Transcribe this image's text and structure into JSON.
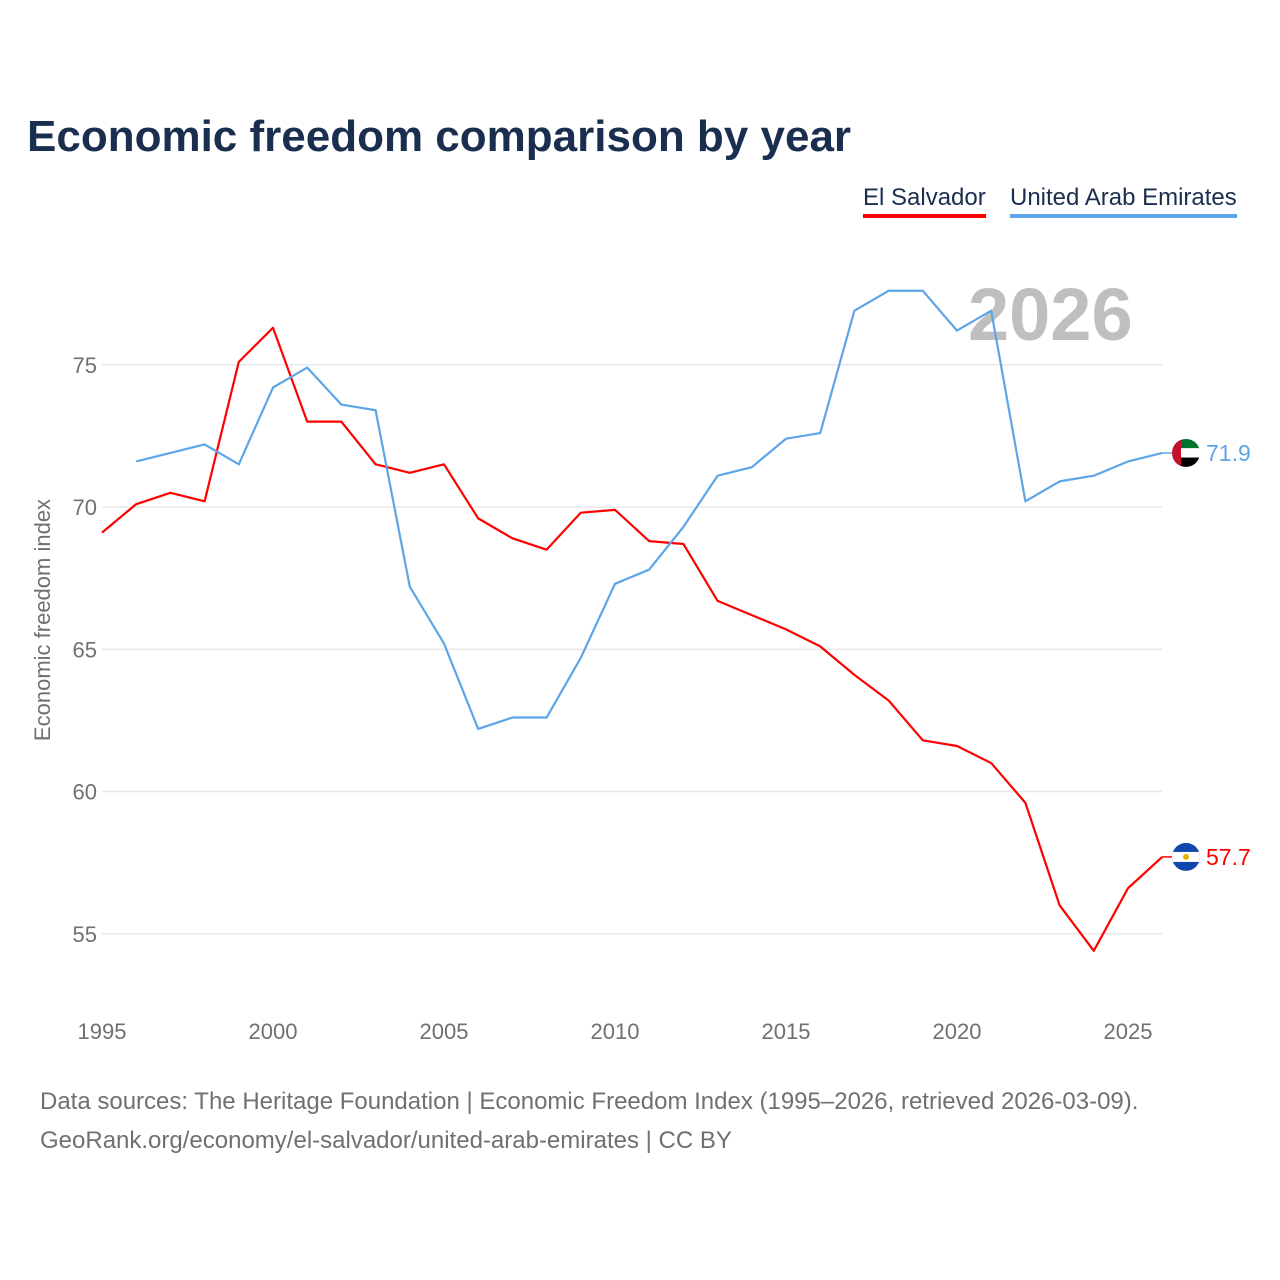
{
  "title": "Economic freedom comparison by year",
  "year_label": "2026",
  "source_line1": "Data sources: The Heritage Foundation | Economic Freedom Index (1995–2026, retrieved 2026-03-09).",
  "source_line2": "GeoRank.org/economy/el-salvador/united-arab-emirates | CC BY",
  "chart_data": {
    "type": "line",
    "title": "Economic freedom comparison by year",
    "xlabel": "",
    "ylabel": "Economic freedom index",
    "xlim": [
      1995,
      2026
    ],
    "ylim": [
      52.5,
      79
    ],
    "xticks": [
      1995,
      2000,
      2005,
      2010,
      2015,
      2020,
      2025
    ],
    "yticks": [
      55,
      60,
      65,
      70,
      75
    ],
    "grid": true,
    "legend_placement": "top-right",
    "series": [
      {
        "name": "El Salvador",
        "color": "#ff0000",
        "end_label": "57.7",
        "flag": "el-salvador-flag-icon",
        "x": [
          1995,
          1996,
          1997,
          1998,
          1999,
          2000,
          2001,
          2002,
          2003,
          2004,
          2005,
          2006,
          2007,
          2008,
          2009,
          2010,
          2011,
          2012,
          2013,
          2014,
          2015,
          2016,
          2017,
          2018,
          2019,
          2020,
          2021,
          2022,
          2023,
          2024,
          2025,
          2026
        ],
        "values": [
          69.1,
          70.1,
          70.5,
          70.2,
          75.1,
          76.3,
          73.0,
          73.0,
          71.5,
          71.2,
          71.5,
          69.6,
          68.9,
          68.5,
          69.8,
          69.9,
          68.8,
          68.7,
          66.7,
          66.2,
          65.7,
          65.1,
          64.1,
          63.2,
          61.8,
          61.6,
          61.0,
          59.6,
          56.0,
          54.4,
          56.6,
          57.7
        ]
      },
      {
        "name": "United Arab Emirates",
        "color": "#5ea5e8",
        "end_label": "71.9",
        "flag": "uae-flag-icon",
        "x": [
          1996,
          1997,
          1998,
          1999,
          2000,
          2001,
          2002,
          2003,
          2004,
          2005,
          2006,
          2007,
          2008,
          2009,
          2010,
          2011,
          2012,
          2013,
          2014,
          2015,
          2016,
          2017,
          2018,
          2019,
          2020,
          2021,
          2022,
          2023,
          2024,
          2025,
          2026
        ],
        "values": [
          71.6,
          71.9,
          72.2,
          71.5,
          74.2,
          74.9,
          73.6,
          73.4,
          67.2,
          65.2,
          62.2,
          62.6,
          62.6,
          64.7,
          67.3,
          67.8,
          69.3,
          71.1,
          71.4,
          72.4,
          72.6,
          76.9,
          77.6,
          77.6,
          76.2,
          76.9,
          70.2,
          70.9,
          71.1,
          71.6,
          71.9
        ]
      }
    ]
  }
}
